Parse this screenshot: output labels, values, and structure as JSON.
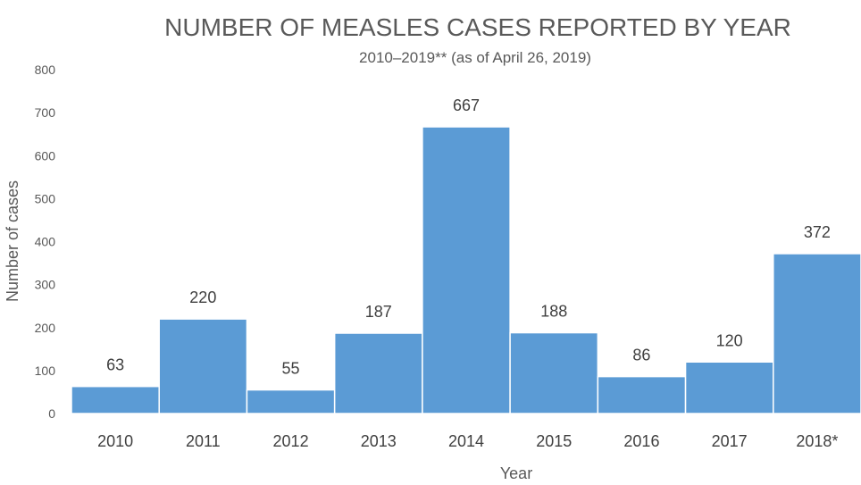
{
  "chart_data": {
    "type": "bar",
    "title": "NUMBER OF MEASLES CASES REPORTED BY YEAR",
    "subtitle": "2010–2019** (as of April 26, 2019)",
    "xlabel": "Year",
    "ylabel": "Number of cases",
    "categories": [
      "2010",
      "2011",
      "2012",
      "2013",
      "2014",
      "2015",
      "2016",
      "2017",
      "2018*"
    ],
    "values": [
      63,
      220,
      55,
      187,
      667,
      188,
      86,
      120,
      372
    ],
    "data_labels": [
      "63",
      "220",
      "55",
      "187",
      "667",
      "188",
      "86",
      "120",
      "372"
    ],
    "ylim": [
      0,
      800
    ],
    "yticks": [
      0,
      100,
      200,
      300,
      400,
      500,
      600,
      700,
      800
    ],
    "grid": false,
    "legend": "none",
    "bar_color": "#5b9bd5"
  }
}
